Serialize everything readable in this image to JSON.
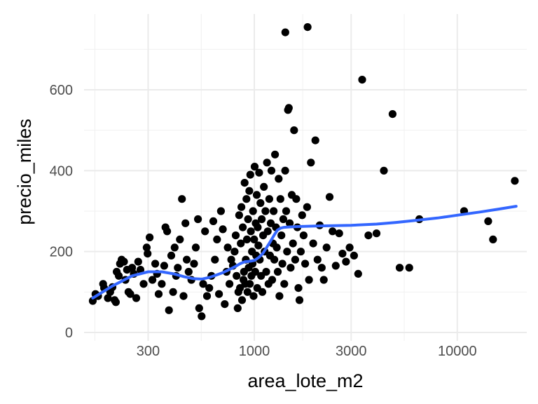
{
  "chart_data": {
    "type": "scatter",
    "title": "",
    "xlabel": "area_lote_m2",
    "ylabel": "precio_miles",
    "x_scale": "log10",
    "xlim": [
      145,
      22000
    ],
    "ylim": [
      0,
      760
    ],
    "x_ticks": [
      {
        "value": 300,
        "label": "300"
      },
      {
        "value": 1000,
        "label": "1000"
      },
      {
        "value": 3000,
        "label": "3000"
      },
      {
        "value": 10000,
        "label": "10000"
      }
    ],
    "y_ticks": [
      {
        "value": 0,
        "label": "0"
      },
      {
        "value": 200,
        "label": "200"
      },
      {
        "value": 400,
        "label": "400"
      },
      {
        "value": 600,
        "label": "600"
      }
    ],
    "grid": true,
    "point_color": "#000000",
    "smooth_color": "#3366ff",
    "points": [
      [
        160,
        78
      ],
      [
        165,
        95
      ],
      [
        170,
        90
      ],
      [
        180,
        120
      ],
      [
        182,
        110
      ],
      [
        190,
        85
      ],
      [
        195,
        100
      ],
      [
        200,
        112
      ],
      [
        205,
        80
      ],
      [
        208,
        75
      ],
      [
        210,
        150
      ],
      [
        215,
        140
      ],
      [
        218,
        170
      ],
      [
        222,
        180
      ],
      [
        228,
        175
      ],
      [
        232,
        130
      ],
      [
        236,
        155
      ],
      [
        240,
        100
      ],
      [
        245,
        95
      ],
      [
        250,
        160
      ],
      [
        255,
        145
      ],
      [
        262,
        85
      ],
      [
        268,
        175
      ],
      [
        275,
        155
      ],
      [
        285,
        120
      ],
      [
        295,
        210
      ],
      [
        298,
        195
      ],
      [
        305,
        235
      ],
      [
        315,
        130
      ],
      [
        325,
        170
      ],
      [
        332,
        145
      ],
      [
        338,
        95
      ],
      [
        350,
        120
      ],
      [
        360,
        165
      ],
      [
        365,
        260
      ],
      [
        372,
        250
      ],
      [
        380,
        55
      ],
      [
        390,
        190
      ],
      [
        398,
        100
      ],
      [
        405,
        210
      ],
      [
        412,
        140
      ],
      [
        420,
        160
      ],
      [
        430,
        230
      ],
      [
        440,
        330
      ],
      [
        448,
        90
      ],
      [
        458,
        270
      ],
      [
        465,
        180
      ],
      [
        475,
        150
      ],
      [
        490,
        130
      ],
      [
        505,
        170
      ],
      [
        515,
        210
      ],
      [
        528,
        280
      ],
      [
        535,
        60
      ],
      [
        550,
        40
      ],
      [
        560,
        120
      ],
      [
        572,
        250
      ],
      [
        585,
        90
      ],
      [
        600,
        110
      ],
      [
        615,
        140
      ],
      [
        628,
        275
      ],
      [
        640,
        180
      ],
      [
        655,
        230
      ],
      [
        670,
        95
      ],
      [
        685,
        300
      ],
      [
        700,
        255
      ],
      [
        715,
        70
      ],
      [
        730,
        150
      ],
      [
        740,
        210
      ],
      [
        755,
        120
      ],
      [
        770,
        180
      ],
      [
        785,
        165
      ],
      [
        800,
        200
      ],
      [
        810,
        240
      ],
      [
        818,
        140
      ],
      [
        828,
        60
      ],
      [
        835,
        100
      ],
      [
        842,
        290
      ],
      [
        850,
        110
      ],
      [
        858,
        220
      ],
      [
        864,
        310
      ],
      [
        870,
        80
      ],
      [
        878,
        260
      ],
      [
        885,
        130
      ],
      [
        890,
        150
      ],
      [
        896,
        370
      ],
      [
        902,
        120
      ],
      [
        908,
        180
      ],
      [
        915,
        330
      ],
      [
        920,
        230
      ],
      [
        926,
        100
      ],
      [
        932,
        280
      ],
      [
        938,
        160
      ],
      [
        945,
        350
      ],
      [
        950,
        120
      ],
      [
        956,
        390
      ],
      [
        962,
        250
      ],
      [
        968,
        140
      ],
      [
        974,
        200
      ],
      [
        980,
        170
      ],
      [
        986,
        300
      ],
      [
        992,
        90
      ],
      [
        998,
        230
      ],
      [
        1004,
        410
      ],
      [
        1010,
        150
      ],
      [
        1016,
        270
      ],
      [
        1022,
        190
      ],
      [
        1028,
        340
      ],
      [
        1034,
        110
      ],
      [
        1040,
        260
      ],
      [
        1048,
        215
      ],
      [
        1056,
        395
      ],
      [
        1064,
        180
      ],
      [
        1072,
        320
      ],
      [
        1080,
        140
      ],
      [
        1088,
        280
      ],
      [
        1096,
        100
      ],
      [
        1105,
        240
      ],
      [
        1115,
        360
      ],
      [
        1125,
        200
      ],
      [
        1135,
        300
      ],
      [
        1145,
        150
      ],
      [
        1155,
        420
      ],
      [
        1165,
        250
      ],
      [
        1175,
        120
      ],
      [
        1185,
        330
      ],
      [
        1195,
        190
      ],
      [
        1205,
        270
      ],
      [
        1215,
        400
      ],
      [
        1225,
        130
      ],
      [
        1235,
        220
      ],
      [
        1245,
        300
      ],
      [
        1255,
        180
      ],
      [
        1265,
        440
      ],
      [
        1278,
        260
      ],
      [
        1290,
        210
      ],
      [
        1305,
        150
      ],
      [
        1318,
        380
      ],
      [
        1330,
        90
      ],
      [
        1345,
        330
      ],
      [
        1360,
        240
      ],
      [
        1375,
        170
      ],
      [
        1390,
        280
      ],
      [
        1405,
        120
      ],
      [
        1420,
        400
      ],
      [
        1435,
        300
      ],
      [
        1450,
        200
      ],
      [
        1465,
        550
      ],
      [
        1480,
        555
      ],
      [
        1495,
        270
      ],
      [
        1510,
        160
      ],
      [
        1530,
        340
      ],
      [
        1550,
        220
      ],
      [
        1570,
        500
      ],
      [
        1590,
        180
      ],
      [
        1610,
        330
      ],
      [
        1630,
        260
      ],
      [
        1650,
        110
      ],
      [
        1670,
        80
      ],
      [
        1695,
        200
      ],
      [
        1720,
        290
      ],
      [
        1750,
        240
      ],
      [
        1780,
        170
      ],
      [
        1820,
        310
      ],
      [
        1860,
        130
      ],
      [
        1900,
        420
      ],
      [
        1950,
        220
      ],
      [
        2000,
        475
      ],
      [
        2050,
        180
      ],
      [
        2100,
        265
      ],
      [
        2150,
        160
      ],
      [
        2200,
        130
      ],
      [
        2270,
        210
      ],
      [
        2350,
        335
      ],
      [
        2430,
        250
      ],
      [
        2520,
        165
      ],
      [
        2620,
        245
      ],
      [
        2720,
        195
      ],
      [
        2830,
        175
      ],
      [
        2950,
        210
      ],
      [
        3100,
        190
      ],
      [
        3250,
        145
      ],
      [
        3400,
        625
      ],
      [
        3650,
        240
      ],
      [
        4000,
        245
      ],
      [
        4350,
        400
      ],
      [
        4800,
        540
      ],
      [
        5200,
        160
      ],
      [
        5800,
        160
      ],
      [
        6500,
        280
      ],
      [
        10800,
        300
      ],
      [
        14200,
        275
      ],
      [
        15000,
        230
      ],
      [
        19200,
        375
      ],
      [
        1422,
        742
      ],
      [
        1830,
        755
      ]
    ],
    "smooth": [
      [
        160,
        85
      ],
      [
        200,
        115
      ],
      [
        250,
        140
      ],
      [
        300,
        150
      ],
      [
        350,
        150
      ],
      [
        400,
        145
      ],
      [
        450,
        138
      ],
      [
        500,
        133
      ],
      [
        550,
        132
      ],
      [
        600,
        136
      ],
      [
        650,
        142
      ],
      [
        700,
        148
      ],
      [
        750,
        155
      ],
      [
        800,
        162
      ],
      [
        850,
        170
      ],
      [
        900,
        175
      ],
      [
        950,
        176
      ],
      [
        1000,
        178
      ],
      [
        1050,
        185
      ],
      [
        1100,
        195
      ],
      [
        1150,
        210
      ],
      [
        1200,
        225
      ],
      [
        1250,
        240
      ],
      [
        1300,
        253
      ],
      [
        1350,
        258
      ],
      [
        1400,
        260
      ],
      [
        1500,
        261
      ],
      [
        1700,
        262
      ],
      [
        2000,
        263
      ],
      [
        3000,
        265
      ],
      [
        4000,
        268
      ],
      [
        5000,
        272
      ],
      [
        6000,
        276
      ],
      [
        8000,
        283
      ],
      [
        10000,
        290
      ],
      [
        13000,
        298
      ],
      [
        16000,
        305
      ],
      [
        19500,
        312
      ]
    ]
  }
}
